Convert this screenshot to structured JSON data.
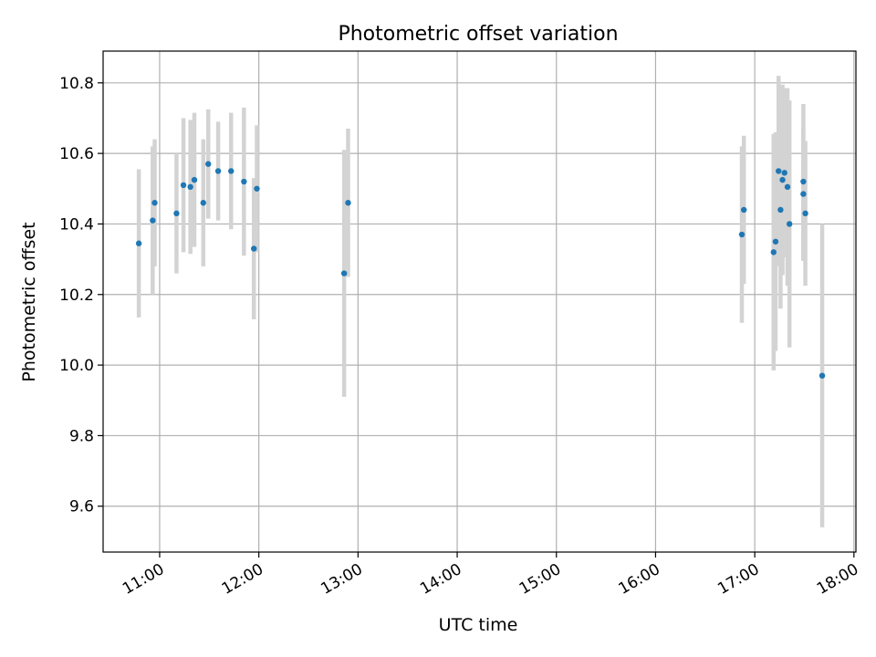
{
  "chart_data": {
    "type": "scatter",
    "title": "Photometric offset variation",
    "xlabel": "UTC time",
    "ylabel": "Photometric offset",
    "x_unit": "hours (UTC time of day)",
    "xlim": [
      10.43,
      18.02
    ],
    "ylim": [
      9.47,
      10.89
    ],
    "grid": true,
    "xticks": [
      {
        "value": 11,
        "label": "11:00"
      },
      {
        "value": 12,
        "label": "12:00"
      },
      {
        "value": 13,
        "label": "13:00"
      },
      {
        "value": 14,
        "label": "14:00"
      },
      {
        "value": 15,
        "label": "15:00"
      },
      {
        "value": 16,
        "label": "16:00"
      },
      {
        "value": 17,
        "label": "17:00"
      },
      {
        "value": 18,
        "label": "18:00"
      }
    ],
    "yticks": [
      {
        "value": 9.6,
        "label": "9.6"
      },
      {
        "value": 9.8,
        "label": "9.8"
      },
      {
        "value": 10.0,
        "label": "10.0"
      },
      {
        "value": 10.2,
        "label": "10.2"
      },
      {
        "value": 10.4,
        "label": "10.4"
      },
      {
        "value": 10.6,
        "label": "10.6"
      },
      {
        "value": 10.8,
        "label": "10.8"
      }
    ],
    "colors": {
      "point": "#1f77b4",
      "errorbar": "#d3d3d3",
      "grid": "#b0b0b0",
      "axes": "#000000"
    },
    "series": [
      {
        "points": [
          {
            "x": 10.79,
            "y": 10.345,
            "yerr": 0.21
          },
          {
            "x": 10.93,
            "y": 10.41,
            "yerr": 0.21
          },
          {
            "x": 10.95,
            "y": 10.46,
            "yerr": 0.18
          },
          {
            "x": 11.17,
            "y": 10.43,
            "yerr": 0.17
          },
          {
            "x": 11.24,
            "y": 10.51,
            "yerr": 0.19
          },
          {
            "x": 11.31,
            "y": 10.505,
            "yerr": 0.19
          },
          {
            "x": 11.35,
            "y": 10.525,
            "yerr": 0.19
          },
          {
            "x": 11.44,
            "y": 10.46,
            "yerr": 0.18
          },
          {
            "x": 11.49,
            "y": 10.57,
            "yerr": 0.155
          },
          {
            "x": 11.59,
            "y": 10.55,
            "yerr": 0.14
          },
          {
            "x": 11.72,
            "y": 10.55,
            "yerr": 0.165
          },
          {
            "x": 11.85,
            "y": 10.52,
            "yerr": 0.21
          },
          {
            "x": 11.95,
            "y": 10.33,
            "yerr": 0.2
          },
          {
            "x": 11.98,
            "y": 10.5,
            "yerr": 0.18
          },
          {
            "x": 12.86,
            "y": 10.26,
            "yerr": 0.35
          },
          {
            "x": 12.9,
            "y": 10.46,
            "yerr": 0.21
          },
          {
            "x": 16.87,
            "y": 10.37,
            "yerr": 0.25
          },
          {
            "x": 16.89,
            "y": 10.44,
            "yerr": 0.21
          },
          {
            "x": 17.19,
            "y": 10.32,
            "yerr": 0.335
          },
          {
            "x": 17.21,
            "y": 10.35,
            "yerr": 0.31
          },
          {
            "x": 17.24,
            "y": 10.55,
            "yerr": 0.27
          },
          {
            "x": 17.26,
            "y": 10.44,
            "yerr": 0.28
          },
          {
            "x": 17.28,
            "y": 10.525,
            "yerr": 0.27
          },
          {
            "x": 17.3,
            "y": 10.545,
            "yerr": 0.24
          },
          {
            "x": 17.33,
            "y": 10.505,
            "yerr": 0.28
          },
          {
            "x": 17.35,
            "y": 10.4,
            "yerr": 0.35
          },
          {
            "x": 17.49,
            "y": 10.52,
            "yerr": 0.22
          },
          {
            "x": 17.49,
            "y": 10.485,
            "yerr": 0.19
          },
          {
            "x": 17.51,
            "y": 10.43,
            "yerr": 0.205
          },
          {
            "x": 17.68,
            "y": 9.97,
            "yerr": 0.43
          }
        ]
      }
    ]
  }
}
